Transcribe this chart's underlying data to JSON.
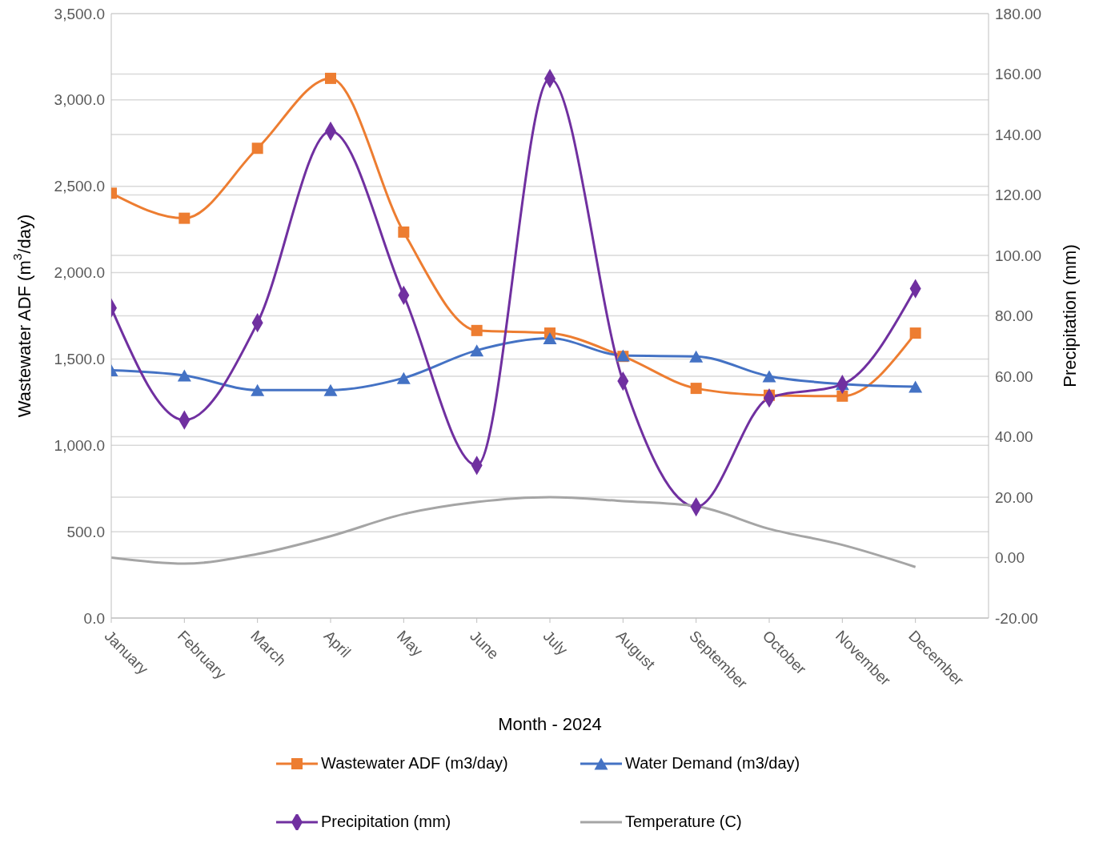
{
  "chart_data": {
    "type": "line",
    "xlabel": "Month - 2024",
    "ylabel": "Wastewater ADF (m$^{3}$/day)",
    "y2label": "Precipitation (mm)",
    "categories": [
      "January",
      "February",
      "March",
      "April",
      "May",
      "June",
      "July",
      "August",
      "September",
      "October",
      "November",
      "December"
    ],
    "series": [
      {
        "name": "Wastewater ADF (m3/day)",
        "color": "#ed7d31",
        "marker": "square",
        "values": [
          2460,
          2315,
          2720,
          3125,
          2235,
          1665,
          1650,
          1515,
          1330,
          1290,
          1285,
          1650
        ]
      },
      {
        "name": "Water Demand (m3/day)",
        "color": "#4472c4",
        "marker": "triangle",
        "values": [
          1435,
          1405,
          1320,
          1320,
          1390,
          1550,
          1620,
          1520,
          1515,
          1400,
          1355,
          1340
        ]
      },
      {
        "name": "Precipitation (mm)",
        "color": "#7030a0",
        "marker": "diamond",
        "axis": "y2",
        "values": [
          82.6,
          45.5,
          77.7,
          141.1,
          86.8,
          30.5,
          158.5,
          58.4,
          16.8,
          52.8,
          57.3,
          89.0
        ]
      },
      {
        "name": "Temperature (C)",
        "color": "#a5a5a5",
        "marker": "none",
        "axis": "y2",
        "values": [
          0.0,
          -2.0,
          1.2,
          7.1,
          14.4,
          18.4,
          20.0,
          18.7,
          17.0,
          9.5,
          4.2,
          -3.1
        ]
      }
    ],
    "ylim": [
      0,
      3500
    ],
    "yticks": [
      {
        "value": 0,
        "label": "0.0"
      },
      {
        "value": 500,
        "label": "500.0"
      },
      {
        "value": 1000,
        "label": "1,000.0"
      },
      {
        "value": 1500,
        "label": "1,500.0"
      },
      {
        "value": 2000,
        "label": "2,000.0"
      },
      {
        "value": 2500,
        "label": "2,500.0"
      },
      {
        "value": 3000,
        "label": "3,000.0"
      },
      {
        "value": 3500,
        "label": "3,500.0"
      }
    ],
    "y2lim": [
      -20,
      180
    ],
    "y2ticks": [
      {
        "value": -20,
        "label": "-20.00"
      },
      {
        "value": 0,
        "label": "0.00"
      },
      {
        "value": 20,
        "label": "20.00"
      },
      {
        "value": 40,
        "label": "40.00"
      },
      {
        "value": 60,
        "label": "60.00"
      },
      {
        "value": 80,
        "label": "80.00"
      },
      {
        "value": 100,
        "label": "100.00"
      },
      {
        "value": 120,
        "label": "120.00"
      },
      {
        "value": 140,
        "label": "140.00"
      },
      {
        "value": 160,
        "label": "160.00"
      },
      {
        "value": 180,
        "label": "180.00"
      }
    ],
    "grid": "y",
    "legend": "bottom",
    "line_style": "solid"
  }
}
